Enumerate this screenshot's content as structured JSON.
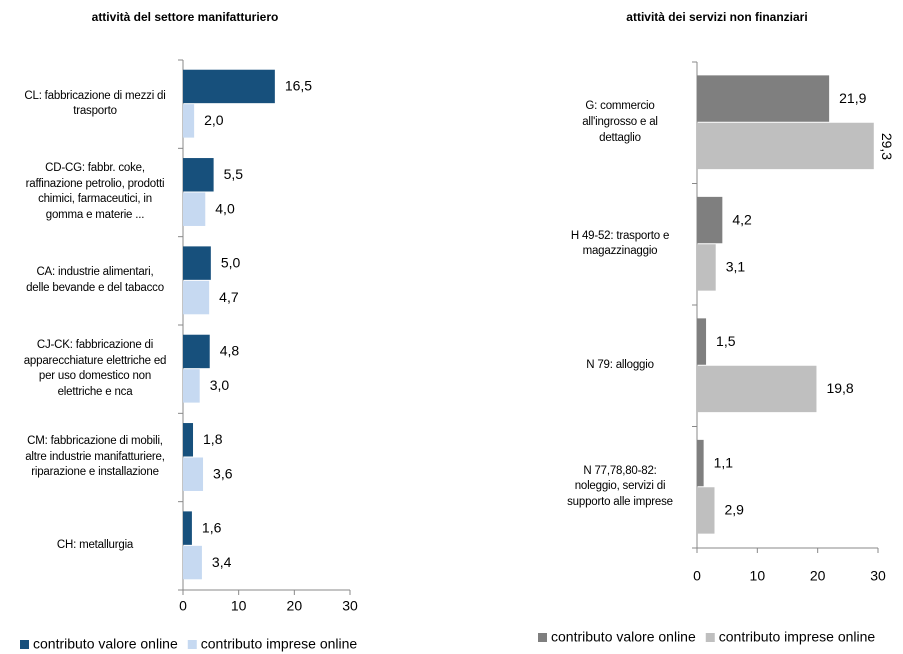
{
  "chart_data": [
    {
      "type": "barh",
      "title": "attività del settore manifatturiero",
      "categories": [
        "CL: fabbricazione di mezzi di\ntrasporto",
        "CD-CG: fabbr. coke,\nraffinazione petrolio, prodotti\nchimici, farmaceutici, in\ngomma e materie ...",
        "CA: industrie alimentari,\ndelle bevande e del tabacco",
        "CJ-CK: fabbricazione di\napparecchiature elettriche ed\nper uso domestico non\nelettriche e nca",
        "CM: fabbricazione di mobili,\naltre industrie manifatturiere,\nriparazione e installazione",
        "CH: metallurgia"
      ],
      "series": [
        {
          "name": "contributo valore online",
          "color": "#17507c",
          "values": [
            16.5,
            5.5,
            5.0,
            4.8,
            1.8,
            1.6
          ],
          "value_labels": [
            "16,5",
            "5,5",
            "5,0",
            "4,8",
            "1,8",
            "1,6"
          ]
        },
        {
          "name": "contributo imprese online",
          "color": "#c6d9f1",
          "values": [
            2.0,
            4.0,
            4.7,
            3.0,
            3.6,
            3.4
          ],
          "value_labels": [
            "2,0",
            "4,0",
            "4,7",
            "3,0",
            "3,6",
            "3,4"
          ]
        }
      ],
      "xlim": [
        0,
        30
      ],
      "xticks": [
        0,
        10,
        20,
        30
      ],
      "legend": "bottom"
    },
    {
      "type": "barh",
      "title": "attività dei servizi non finanziari",
      "categories": [
        "G: commercio\nall'ingrosso e al\ndettaglio",
        "H 49-52: trasporto e\nmagazzinaggio",
        "N 79: alloggio",
        "N 77,78,80-82:\nnoleggio, servizi di\nsupporto alle imprese"
      ],
      "series": [
        {
          "name": "contributo valore online",
          "color": "#7f7f7f",
          "values": [
            21.9,
            4.2,
            1.5,
            1.1
          ],
          "value_labels": [
            "21,9",
            "4,2",
            "1,5",
            "1,1"
          ]
        },
        {
          "name": "contributo imprese online",
          "color": "#bfbfbf",
          "values": [
            29.3,
            3.1,
            19.8,
            2.9
          ],
          "value_labels": [
            "29,3",
            "3,1",
            "19,8",
            "2,9"
          ]
        }
      ],
      "xlim": [
        0,
        30
      ],
      "xticks": [
        0,
        10,
        20,
        30
      ],
      "legend": "bottom"
    }
  ]
}
